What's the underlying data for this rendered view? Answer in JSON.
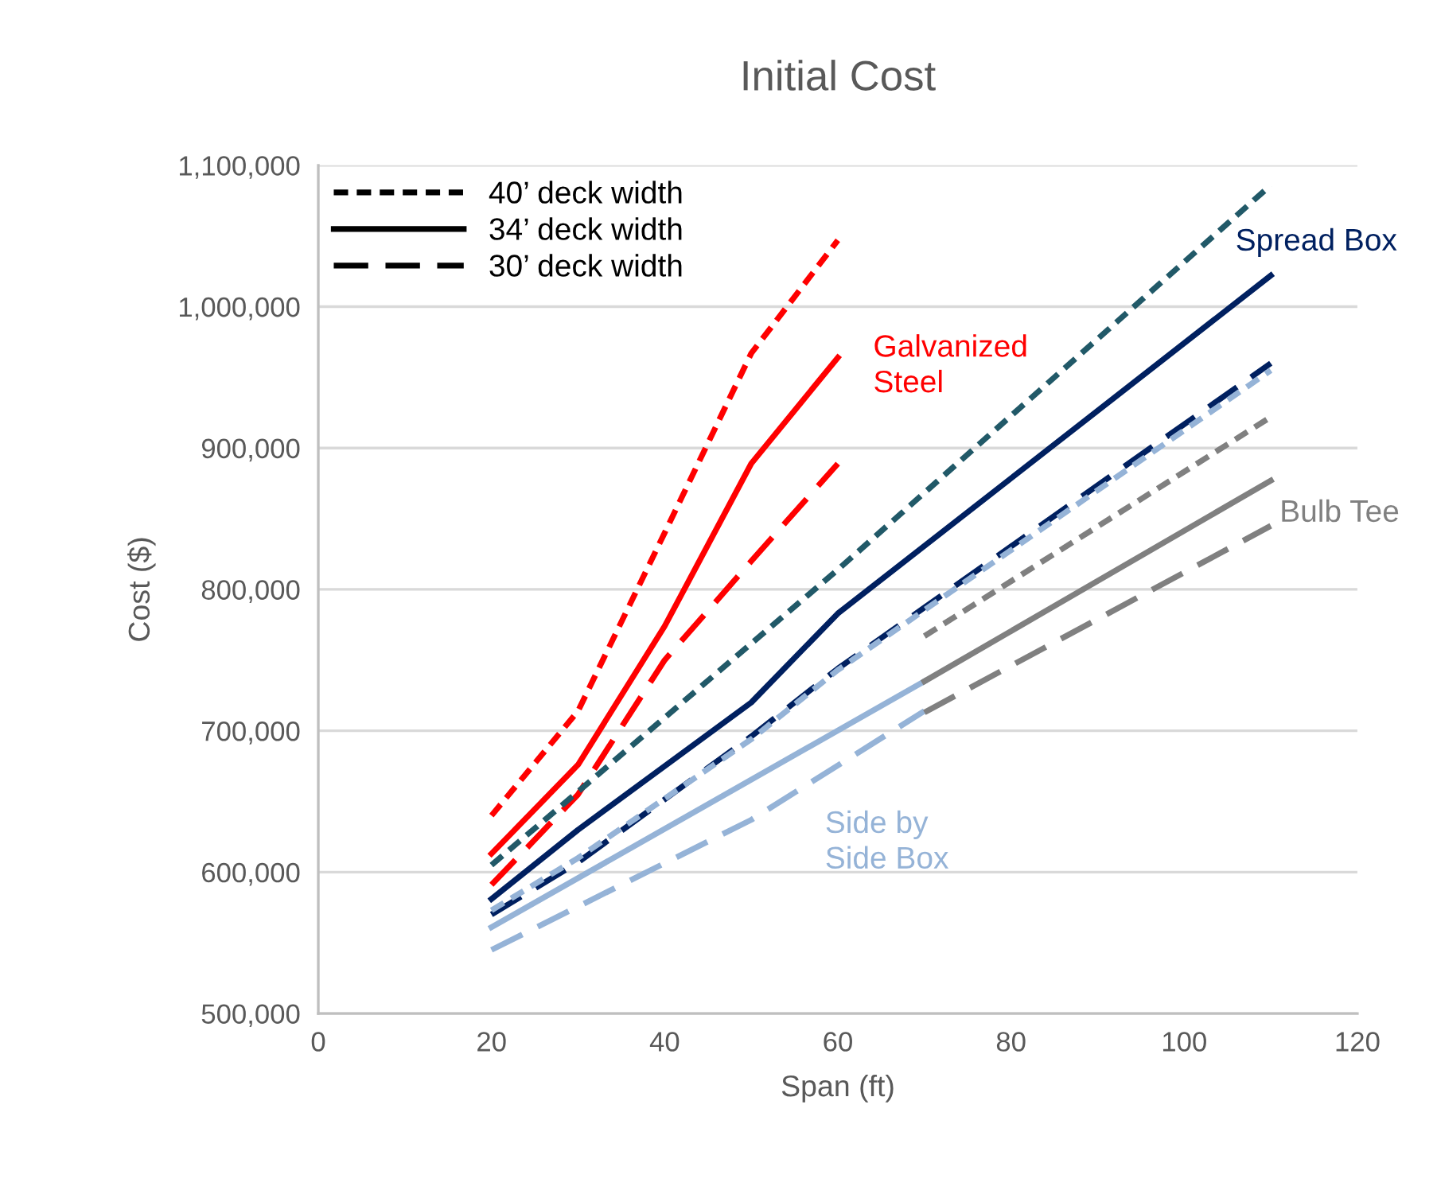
{
  "chart_data": {
    "type": "line",
    "title": "Initial Cost",
    "xlabel": "Span (ft)",
    "ylabel": "Cost ($)",
    "xlim": [
      0,
      120
    ],
    "xticks": [
      0,
      20,
      40,
      60,
      80,
      100,
      120
    ],
    "ylim": [
      500000,
      1100000
    ],
    "yticks": [
      {
        "value": 500000,
        "label": "500,000"
      },
      {
        "value": 600000,
        "label": "600,000"
      },
      {
        "value": 700000,
        "label": "700,000"
      },
      {
        "value": 800000,
        "label": "800,000"
      },
      {
        "value": 900000,
        "label": "900,000"
      },
      {
        "value": 1000000,
        "label": "1,000,000"
      },
      {
        "value": 1100000,
        "label": "1,100,000"
      }
    ],
    "grid": "y",
    "marker": "none",
    "series": [
      {
        "color": "#ff0000",
        "line_style": "dotted",
        "x": [
          20,
          30,
          40,
          50,
          60
        ],
        "values": [
          640000,
          714000,
          840000,
          967000,
          1047000
        ]
      },
      {
        "name": "Galvanized\nSteel",
        "color": "#ff0000",
        "line_style": "solid",
        "x": [
          20,
          30,
          40,
          50,
          60
        ],
        "values": [
          613000,
          676000,
          774000,
          889000,
          964000
        ]
      },
      {
        "color": "#ff0000",
        "line_style": "dashed",
        "x": [
          20,
          30,
          40,
          50,
          60
        ],
        "values": [
          591000,
          655000,
          750000,
          820000,
          889000
        ]
      },
      {
        "color": "#215968",
        "line_style": "dotted",
        "x": [
          20,
          30,
          60,
          110
        ],
        "values": [
          605000,
          657000,
          814000,
          1086000
        ]
      },
      {
        "name": "Spread Box",
        "color": "#002060",
        "line_style": "solid",
        "x": [
          20,
          30,
          50,
          60,
          110
        ],
        "values": [
          581000,
          630000,
          720000,
          783000,
          1022000
        ]
      },
      {
        "color": "#002060",
        "line_style": "dashed",
        "x": [
          20,
          30,
          50,
          60,
          110
        ],
        "values": [
          570000,
          607000,
          696000,
          744000,
          960000
        ]
      },
      {
        "color": "#95b3d7",
        "line_style": "dotted",
        "x": [
          20,
          30,
          50,
          60,
          110
        ],
        "values": [
          573000,
          610000,
          694000,
          743000,
          955000
        ]
      },
      {
        "name": "Side by\nSide Box",
        "color": "#95b3d7",
        "line_style": "solid",
        "x": [
          20,
          70
        ],
        "values": [
          561000,
          735000
        ]
      },
      {
        "color": "#95b3d7",
        "line_style": "dashed",
        "x": [
          20,
          50,
          70
        ],
        "values": [
          545000,
          637000,
          714000
        ]
      },
      {
        "color": "#808080",
        "line_style": "dotted",
        "x": [
          70,
          110
        ],
        "values": [
          767000,
          922000
        ]
      },
      {
        "name": "Bulb Tee",
        "color": "#808080",
        "line_style": "solid",
        "x": [
          70,
          110
        ],
        "values": [
          735000,
          877000
        ]
      },
      {
        "color": "#808080",
        "line_style": "dashed",
        "x": [
          70,
          110
        ],
        "values": [
          713000,
          845000
        ]
      }
    ],
    "annotations": [
      "40’ deck width",
      "34’ deck width",
      "30’ deck width"
    ]
  }
}
